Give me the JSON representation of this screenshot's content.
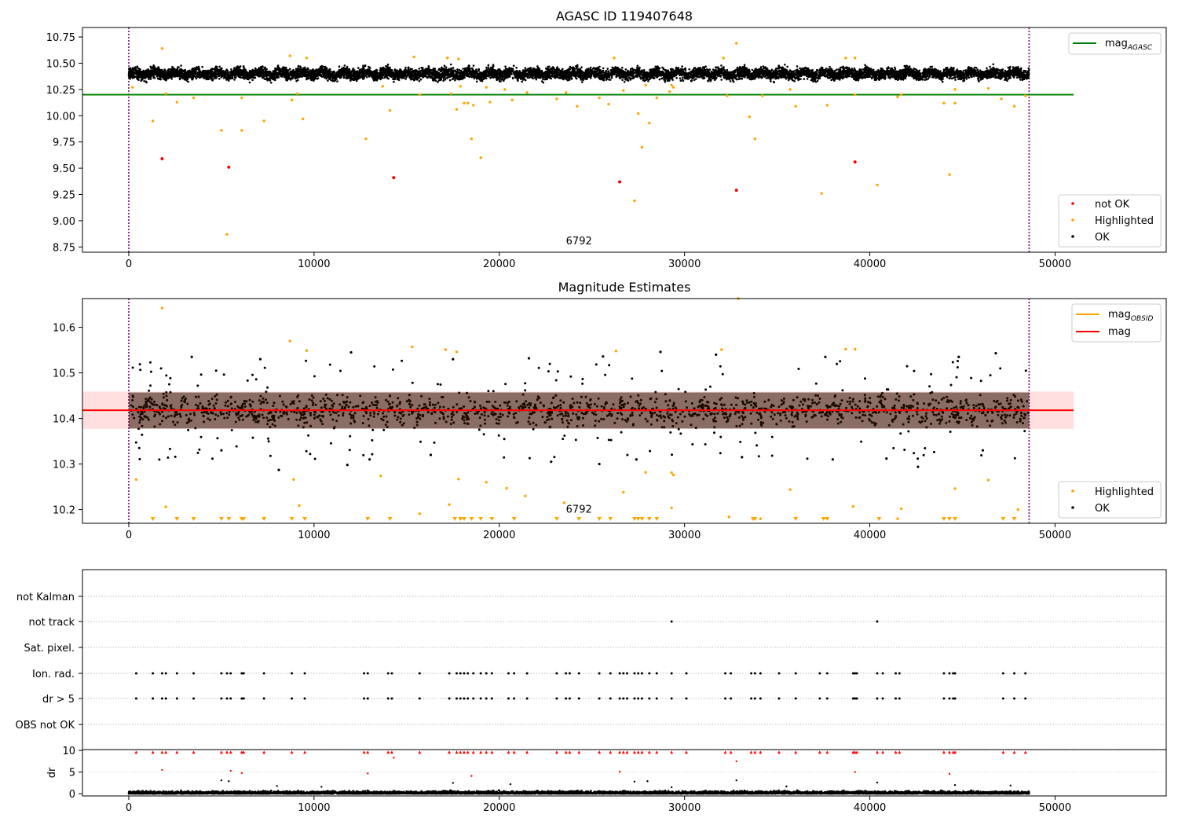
{
  "chart_data": [
    {
      "type": "scatter",
      "title": "AGASC ID 119407648",
      "xlim": [
        -2500,
        56000
      ],
      "ylim": [
        8.7,
        10.84
      ],
      "xticks": [
        "0",
        "10000",
        "20000",
        "30000",
        "40000",
        "50000"
      ],
      "yticks": [
        "8.75",
        "9.00",
        "9.25",
        "9.50",
        "9.75",
        "10.00",
        "10.25",
        "10.50",
        "10.75"
      ],
      "annotation": {
        "text": "6792",
        "x": 24300,
        "y": 8.76
      },
      "obs_bounds": [
        0,
        48600
      ],
      "reference_lines": [
        {
          "name": "mag_AGASC",
          "y": 10.2,
          "x_range": [
            -2500,
            51000
          ],
          "color": "#008000"
        }
      ],
      "ok_band": {
        "x_range": [
          0,
          48600
        ],
        "y_center": 10.4,
        "y_halfwidth": 0.1
      },
      "highlighted": [
        [
          200,
          10.27
        ],
        [
          1300,
          9.95
        ],
        [
          1800,
          10.64
        ],
        [
          2000,
          10.21
        ],
        [
          2600,
          10.13
        ],
        [
          3500,
          10.17
        ],
        [
          5000,
          9.86
        ],
        [
          5300,
          8.87
        ],
        [
          6100,
          9.86
        ],
        [
          6100,
          10.17
        ],
        [
          7300,
          9.95
        ],
        [
          8700,
          10.57
        ],
        [
          8800,
          10.15
        ],
        [
          9100,
          10.21
        ],
        [
          9400,
          9.97
        ],
        [
          9600,
          10.55
        ],
        [
          12800,
          9.78
        ],
        [
          13700,
          10.28
        ],
        [
          14100,
          10.05
        ],
        [
          15400,
          10.56
        ],
        [
          15700,
          10.2
        ],
        [
          17200,
          10.55
        ],
        [
          17400,
          10.21
        ],
        [
          17700,
          10.06
        ],
        [
          17800,
          10.54
        ],
        [
          17900,
          10.28
        ],
        [
          18100,
          10.12
        ],
        [
          18300,
          10.12
        ],
        [
          18500,
          9.78
        ],
        [
          18600,
          10.1
        ],
        [
          19000,
          9.6
        ],
        [
          19300,
          10.27
        ],
        [
          19500,
          10.13
        ],
        [
          20300,
          10.25
        ],
        [
          20700,
          10.15
        ],
        [
          21500,
          10.22
        ],
        [
          23100,
          10.16
        ],
        [
          23600,
          10.22
        ],
        [
          24200,
          10.09
        ],
        [
          25400,
          10.17
        ],
        [
          25900,
          10.11
        ],
        [
          26200,
          10.55
        ],
        [
          26700,
          10.24
        ],
        [
          27300,
          9.19
        ],
        [
          27500,
          10.02
        ],
        [
          27700,
          9.7
        ],
        [
          27900,
          10.29
        ],
        [
          28100,
          9.93
        ],
        [
          28500,
          10.17
        ],
        [
          29200,
          10.23
        ],
        [
          29300,
          10.29
        ],
        [
          29400,
          10.27
        ],
        [
          32100,
          10.55
        ],
        [
          32300,
          10.19
        ],
        [
          33500,
          9.99
        ],
        [
          33800,
          9.78
        ],
        [
          34200,
          10.19
        ],
        [
          35700,
          10.25
        ],
        [
          36000,
          10.09
        ],
        [
          37400,
          9.26
        ],
        [
          37700,
          10.1
        ],
        [
          38700,
          10.55
        ],
        [
          39200,
          10.55
        ],
        [
          39200,
          10.2
        ],
        [
          40400,
          9.34
        ],
        [
          41500,
          10.18
        ],
        [
          41700,
          10.2
        ],
        [
          44000,
          10.12
        ],
        [
          44300,
          9.44
        ],
        [
          44600,
          10.25
        ],
        [
          44600,
          10.12
        ],
        [
          46400,
          10.26
        ],
        [
          47100,
          10.16
        ],
        [
          47800,
          10.09
        ],
        [
          48400,
          10.19
        ],
        [
          32800,
          10.69
        ]
      ],
      "not_ok": [
        [
          1800,
          9.59
        ],
        [
          5400,
          9.51
        ],
        [
          14300,
          9.41
        ],
        [
          26500,
          9.37
        ],
        [
          32800,
          9.29
        ],
        [
          39200,
          9.56
        ]
      ],
      "legend": {
        "placement": "lower right",
        "entries": [
          "not OK",
          "Highlighted",
          "OK"
        ]
      },
      "legend_upper": {
        "placement": "upper right",
        "entries": [
          {
            "base": "mag",
            "sub": "AGASC"
          }
        ]
      },
      "colors": {
        "ok": "#000000",
        "highlighted": "#ffa500",
        "not_ok": "#ff0000",
        "agasc_line": "#008000",
        "obs_bounds": "#800080"
      }
    },
    {
      "type": "scatter",
      "title": "Magnitude Estimates",
      "xlim": [
        -2500,
        56000
      ],
      "ylim": [
        10.17,
        10.663
      ],
      "xticks": [
        "0",
        "10000",
        "20000",
        "30000",
        "40000",
        "50000"
      ],
      "yticks": [
        "10.2",
        "10.3",
        "10.4",
        "10.5",
        "10.6"
      ],
      "annotation": {
        "text": "6792",
        "x": 24300,
        "y": 10.19
      },
      "obs_bounds": [
        0,
        48600
      ],
      "reference_lines": [
        {
          "name": "mag",
          "y": 10.418,
          "x_range": [
            -2500,
            51000
          ],
          "color": "#ff0000"
        }
      ],
      "mag_band": {
        "low": 10.377,
        "high": 10.459,
        "x_range": [
          -2500,
          51000
        ]
      },
      "ok_band": {
        "x_range": [
          0,
          48600
        ],
        "y_center": 10.418,
        "y_halfwidth": 0.06
      },
      "ok_outliers": [
        [
          5000,
          10.33
        ],
        [
          8100,
          10.287
        ],
        [
          11800,
          10.298
        ],
        [
          13000,
          10.31
        ],
        [
          16300,
          10.32
        ],
        [
          22800,
          10.305
        ],
        [
          25400,
          10.3
        ],
        [
          27400,
          10.31
        ],
        [
          33100,
          10.315
        ],
        [
          38000,
          10.31
        ],
        [
          40900,
          10.312
        ],
        [
          42600,
          10.294
        ],
        [
          46100,
          10.33
        ],
        [
          3400,
          10.535
        ],
        [
          7100,
          10.53
        ],
        [
          12000,
          10.545
        ],
        [
          17500,
          10.53
        ],
        [
          21600,
          10.532
        ],
        [
          25600,
          10.536
        ],
        [
          28700,
          10.546
        ],
        [
          31700,
          10.54
        ],
        [
          37600,
          10.535
        ],
        [
          44800,
          10.535
        ],
        [
          46800,
          10.543
        ]
      ],
      "highlighted": [
        [
          400,
          10.266
        ],
        [
          1800,
          10.642
        ],
        [
          2000,
          10.206
        ],
        [
          8700,
          10.57
        ],
        [
          8900,
          10.266
        ],
        [
          9200,
          10.209
        ],
        [
          9600,
          10.549
        ],
        [
          13600,
          10.274
        ],
        [
          15300,
          10.557
        ],
        [
          15700,
          10.191
        ],
        [
          17100,
          10.551
        ],
        [
          17300,
          10.211
        ],
        [
          17700,
          10.546
        ],
        [
          17800,
          10.267
        ],
        [
          19300,
          10.26
        ],
        [
          20400,
          10.247
        ],
        [
          21400,
          10.23
        ],
        [
          23500,
          10.215
        ],
        [
          26300,
          10.548
        ],
        [
          26700,
          10.238
        ],
        [
          27900,
          10.282
        ],
        [
          29300,
          10.281
        ],
        [
          29400,
          10.276
        ],
        [
          29300,
          10.204
        ],
        [
          32000,
          10.551
        ],
        [
          32400,
          10.184
        ],
        [
          34100,
          10.18
        ],
        [
          35700,
          10.244
        ],
        [
          38700,
          10.552
        ],
        [
          39200,
          10.552
        ],
        [
          39100,
          10.207
        ],
        [
          41500,
          10.18
        ],
        [
          41700,
          10.202
        ],
        [
          44600,
          10.246
        ],
        [
          46400,
          10.265
        ],
        [
          48000,
          10.2
        ],
        [
          32900,
          10.663
        ]
      ],
      "off_scale_below_x": [
        1300,
        2600,
        3500,
        5000,
        5400,
        6100,
        6200,
        7300,
        8800,
        9500,
        12900,
        14100,
        17600,
        17900,
        18100,
        18500,
        19000,
        19600,
        20800,
        23100,
        24300,
        25400,
        26000,
        27300,
        27500,
        27700,
        28100,
        28500,
        33700,
        33800,
        36000,
        37500,
        37700,
        40500,
        44000,
        44300,
        44600,
        47200,
        47800
      ],
      "legend": {
        "placement": "lower right",
        "entries": [
          "Highlighted",
          "OK"
        ]
      },
      "legend_upper": {
        "placement": "upper right",
        "entries": [
          {
            "base": "mag",
            "sub": "OBSID"
          },
          {
            "base": "mag",
            "sub": ""
          }
        ]
      },
      "colors": {
        "ok": "#000000",
        "highlighted": "#ffa500",
        "mag_line": "#ff0000",
        "mag_obsid": "#ffa500",
        "mag_band": "#ffc0c0",
        "ok_band_fill": "#2a0e00"
      }
    },
    {
      "type": "scatter",
      "title": "",
      "xlim": [
        -2500,
        56000
      ],
      "xticks": [
        "0",
        "10000",
        "20000",
        "30000",
        "40000",
        "50000"
      ],
      "flag_rows": [
        "not Kalman",
        "not track",
        "Sat. pixel.",
        "Ion. rad.",
        "dr > 5",
        "OBS not OK"
      ],
      "flags": {
        "not track": [
          29300,
          40400
        ],
        "Ion. rad.": [
          400,
          1300,
          1800,
          2000,
          2600,
          3500,
          5000,
          5300,
          5500,
          6100,
          6200,
          7300,
          8800,
          9500,
          12700,
          12900,
          14000,
          14200,
          15700,
          17300,
          17700,
          17900,
          18100,
          18300,
          18600,
          19000,
          19300,
          19600,
          20500,
          20800,
          21500,
          23100,
          23600,
          23800,
          24300,
          25400,
          26000,
          26500,
          26700,
          26900,
          27300,
          27500,
          27700,
          28100,
          28500,
          29300,
          30100,
          32200,
          32500,
          33600,
          33800,
          34100,
          35100,
          36000,
          37300,
          37700,
          39100,
          39200,
          39300,
          40400,
          40700,
          41400,
          41600,
          44000,
          44300,
          44500,
          44600,
          47200,
          47800,
          48400
        ],
        "dr > 5": [
          400,
          1300,
          1800,
          2000,
          2600,
          3500,
          5000,
          5300,
          5500,
          6100,
          6200,
          7300,
          8800,
          9500,
          12700,
          12900,
          14000,
          14200,
          15700,
          17300,
          17700,
          17900,
          18100,
          18300,
          18600,
          19000,
          19300,
          19600,
          20500,
          20800,
          21500,
          23100,
          23600,
          23800,
          24300,
          25400,
          26000,
          26500,
          26700,
          26900,
          27300,
          27500,
          27700,
          28100,
          28500,
          29300,
          30100,
          32200,
          32500,
          33600,
          33800,
          34100,
          35100,
          36000,
          37300,
          37700,
          39100,
          39200,
          39300,
          40400,
          40700,
          41400,
          41600,
          44000,
          44300,
          44500,
          44600,
          47200,
          47800,
          48400
        ]
      },
      "colors": {
        "flag": "#000000",
        "grid": "#bbbbbb",
        "obs_bounds": "#800080"
      }
    },
    {
      "type": "scatter",
      "title": "",
      "ylabel": "dr",
      "xlim": [
        -2500,
        56000
      ],
      "ylim": [
        -0.5,
        10.2
      ],
      "xticks": [
        "0",
        "10000",
        "20000",
        "30000",
        "40000",
        "50000"
      ],
      "yticks": [
        "0",
        "5",
        "10"
      ],
      "ok_band": {
        "x_range": [
          0,
          48600
        ],
        "y_center": 0.6,
        "y_halfwidth": 0.6
      },
      "capped_at_10_x": [
        400,
        1300,
        1800,
        2000,
        2600,
        3500,
        5000,
        5300,
        5500,
        6100,
        6200,
        7300,
        8800,
        9500,
        12700,
        12900,
        14000,
        14200,
        15700,
        17300,
        17700,
        17900,
        18100,
        18300,
        18600,
        19000,
        19300,
        19600,
        20500,
        20800,
        21500,
        23100,
        23600,
        23800,
        24300,
        25400,
        26000,
        26500,
        26700,
        26900,
        27300,
        27500,
        27700,
        28100,
        28500,
        29300,
        30100,
        32200,
        32500,
        33600,
        33800,
        34100,
        35100,
        36000,
        37300,
        37700,
        39100,
        39200,
        39300,
        40400,
        40700,
        41400,
        41600,
        44000,
        44300,
        44500,
        44600,
        47200,
        47800,
        48400
      ],
      "scattered": [
        [
          1800,
          5.5
        ],
        [
          5000,
          3.1
        ],
        [
          5400,
          2.9
        ],
        [
          5500,
          5.3
        ],
        [
          6100,
          4.8
        ],
        [
          12900,
          4.7
        ],
        [
          14300,
          8.3
        ],
        [
          18500,
          4.1
        ],
        [
          26500,
          5.1
        ],
        [
          27300,
          2.8
        ],
        [
          28000,
          2.9
        ],
        [
          32800,
          7.5
        ],
        [
          32800,
          3.1
        ],
        [
          39200,
          5.0
        ],
        [
          40400,
          2.6
        ],
        [
          44300,
          4.6
        ],
        [
          44600,
          2.0
        ],
        [
          29300,
          1.5
        ],
        [
          8000,
          1.8
        ],
        [
          20600,
          2.2
        ],
        [
          47600,
          1.9
        ],
        [
          17500,
          2.5
        ],
        [
          10400,
          1.6
        ],
        [
          35500,
          1.7
        ]
      ],
      "colors": {
        "ok": "#000000",
        "capped": "#ff0000",
        "obs_bounds": "#800080"
      }
    }
  ]
}
